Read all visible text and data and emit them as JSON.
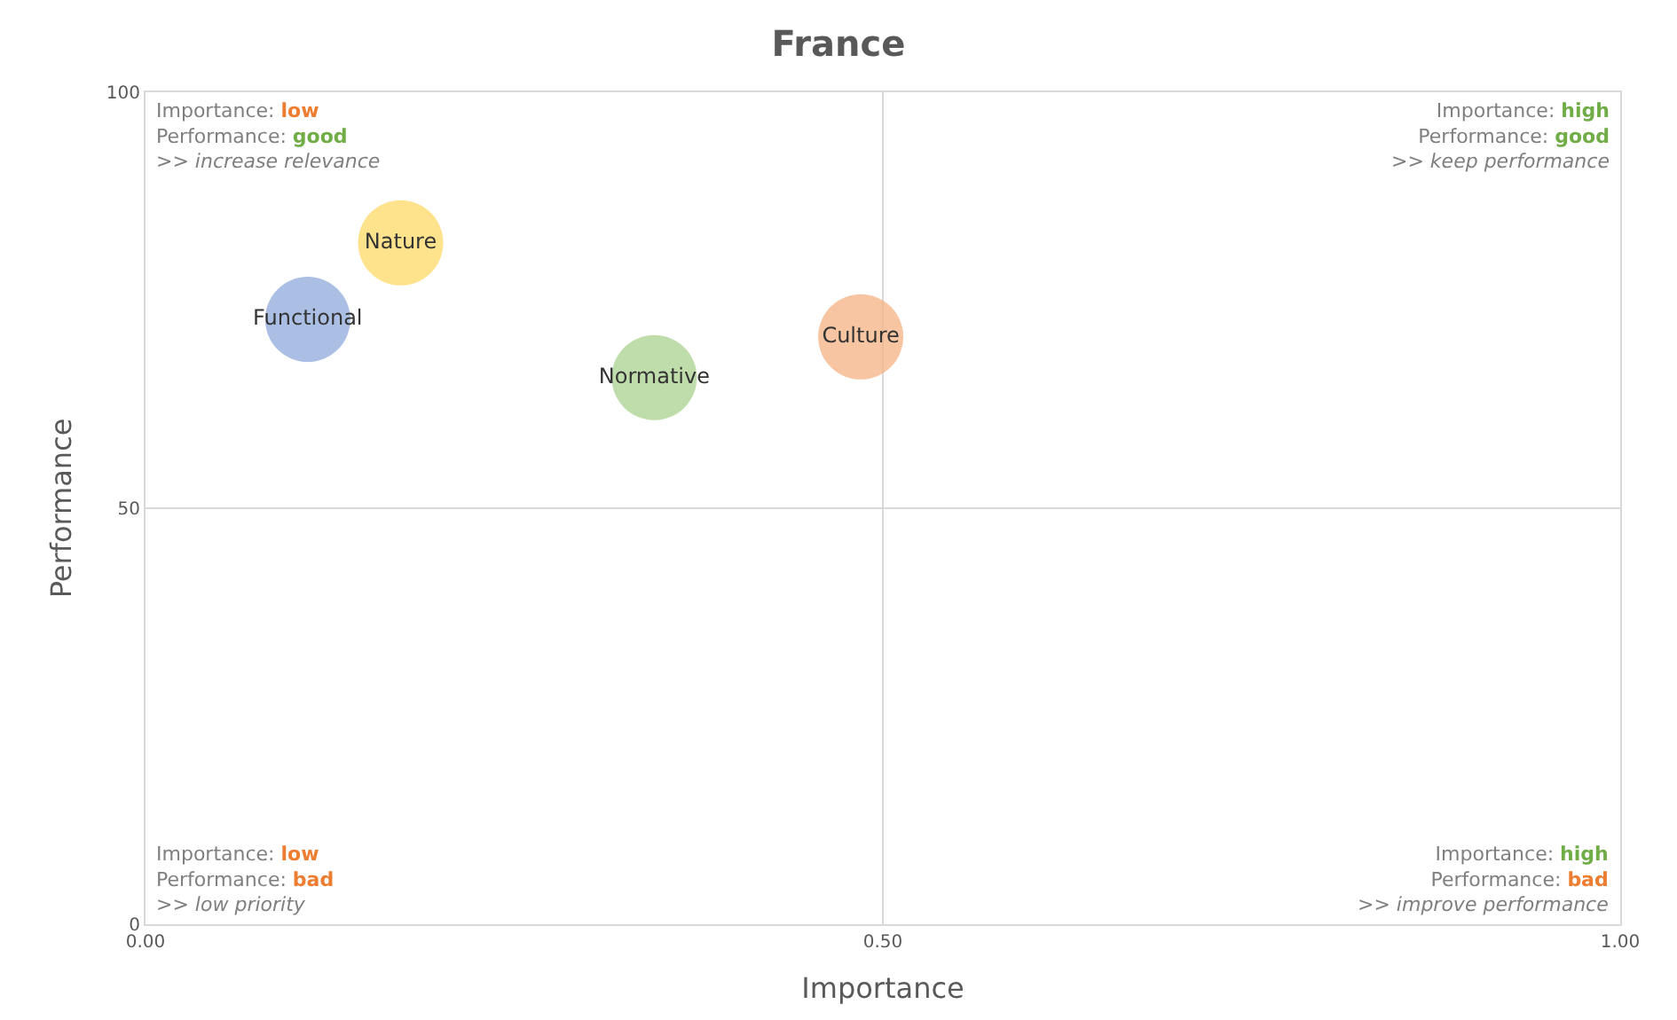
{
  "chart_data": {
    "type": "bubble",
    "title": "France",
    "xlabel": "Importance",
    "ylabel": "Performance",
    "series": [
      {
        "name": "Functional",
        "color": "#8faadc",
        "x": [
          0.11
        ],
        "values": [
          72.7
        ],
        "sizes": [
          1
        ]
      },
      {
        "name": "Nature",
        "color": "#ffd966",
        "x": [
          0.173
        ],
        "values": [
          81.9
        ],
        "sizes": [
          1
        ]
      },
      {
        "name": "Normative",
        "color": "#a9d18e",
        "x": [
          0.345
        ],
        "values": [
          65.7
        ],
        "sizes": [
          1
        ]
      },
      {
        "name": "Culture",
        "color": "#f4b183",
        "x": [
          0.485
        ],
        "values": [
          70.6
        ],
        "sizes": [
          1
        ]
      }
    ],
    "xlim": [
      0,
      1
    ],
    "xticks": [
      {
        "value": 0,
        "label": "0.00"
      },
      {
        "value": 0.5,
        "label": "0.50"
      },
      {
        "value": 1,
        "label": "1.00"
      }
    ],
    "ylim": [
      0,
      100
    ],
    "yticks": [
      0,
      50,
      100
    ],
    "grid": true,
    "legend": false,
    "annotations": [
      "Importance: low\nPerformance: good\n>> increase relevance",
      "Importance: high\nPerformance: good\n>> keep performance",
      "Importance: low\nPerformance: bad\n>> low priority",
      "Importance: high\nPerformance: bad\n>> improve performance"
    ]
  }
}
